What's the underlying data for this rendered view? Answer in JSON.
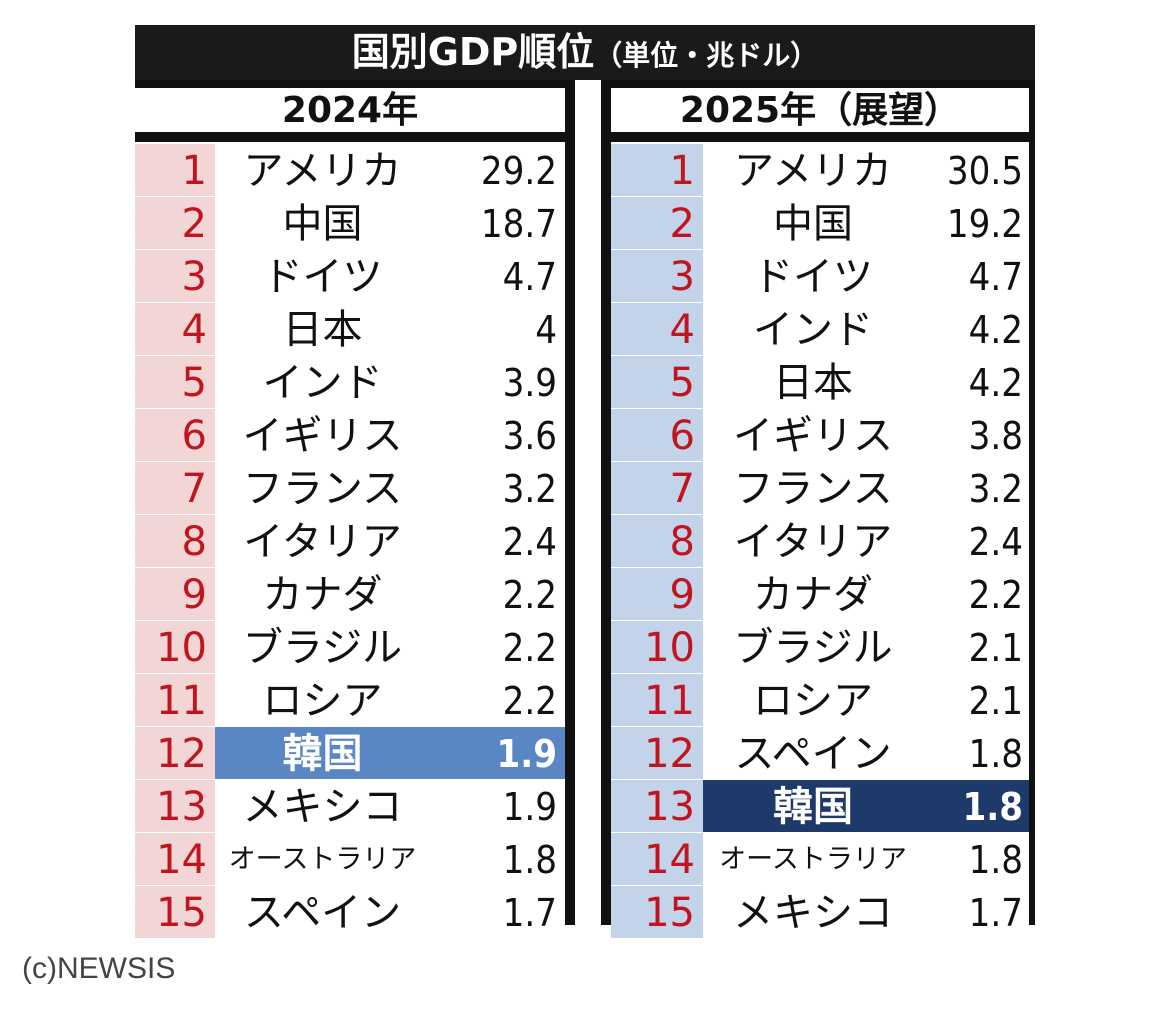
{
  "title": "国別GDP順位",
  "subtitle": "（単位・兆ドル）",
  "credit": "(c)NEWSIS",
  "colors": {
    "rank_text": "#c0141e",
    "left_rank_bg": "#f2d6d6",
    "right_rank_bg": "#c3d4ea",
    "left_highlight": "#5a87c4",
    "right_highlight": "#1e3a6b"
  },
  "chart_data": [
    {
      "type": "table",
      "title": "2024年",
      "highlight_row": 12,
      "rows": [
        {
          "rank": "1",
          "country": "アメリカ",
          "value": "29.2"
        },
        {
          "rank": "2",
          "country": "中国",
          "value": "18.7"
        },
        {
          "rank": "3",
          "country": "ドイツ",
          "value": "4.7"
        },
        {
          "rank": "4",
          "country": "日本",
          "value": "4"
        },
        {
          "rank": "5",
          "country": "インド",
          "value": "3.9"
        },
        {
          "rank": "6",
          "country": "イギリス",
          "value": "3.6"
        },
        {
          "rank": "7",
          "country": "フランス",
          "value": "3.2"
        },
        {
          "rank": "8",
          "country": "イタリア",
          "value": "2.4"
        },
        {
          "rank": "9",
          "country": "カナダ",
          "value": "2.2"
        },
        {
          "rank": "10",
          "country": "ブラジル",
          "value": "2.2"
        },
        {
          "rank": "11",
          "country": "ロシア",
          "value": "2.2"
        },
        {
          "rank": "12",
          "country": "韓国",
          "value": "1.9"
        },
        {
          "rank": "13",
          "country": "メキシコ",
          "value": "1.9"
        },
        {
          "rank": "14",
          "country": "オーストラリア",
          "value": "1.8"
        },
        {
          "rank": "15",
          "country": "スペイン",
          "value": "1.7"
        }
      ]
    },
    {
      "type": "table",
      "title": "2025年（展望）",
      "highlight_row": 13,
      "rows": [
        {
          "rank": "1",
          "country": "アメリカ",
          "value": "30.5"
        },
        {
          "rank": "2",
          "country": "中国",
          "value": "19.2"
        },
        {
          "rank": "3",
          "country": "ドイツ",
          "value": "4.7"
        },
        {
          "rank": "4",
          "country": "インド",
          "value": "4.2"
        },
        {
          "rank": "5",
          "country": "日本",
          "value": "4.2"
        },
        {
          "rank": "6",
          "country": "イギリス",
          "value": "3.8"
        },
        {
          "rank": "7",
          "country": "フランス",
          "value": "3.2"
        },
        {
          "rank": "8",
          "country": "イタリア",
          "value": "2.4"
        },
        {
          "rank": "9",
          "country": "カナダ",
          "value": "2.2"
        },
        {
          "rank": "10",
          "country": "ブラジル",
          "value": "2.1"
        },
        {
          "rank": "11",
          "country": "ロシア",
          "value": "2.1"
        },
        {
          "rank": "12",
          "country": "スペイン",
          "value": "1.8"
        },
        {
          "rank": "13",
          "country": "韓国",
          "value": "1.8"
        },
        {
          "rank": "14",
          "country": "オーストラリア",
          "value": "1.8"
        },
        {
          "rank": "15",
          "country": "メキシコ",
          "value": "1.7"
        }
      ]
    }
  ]
}
